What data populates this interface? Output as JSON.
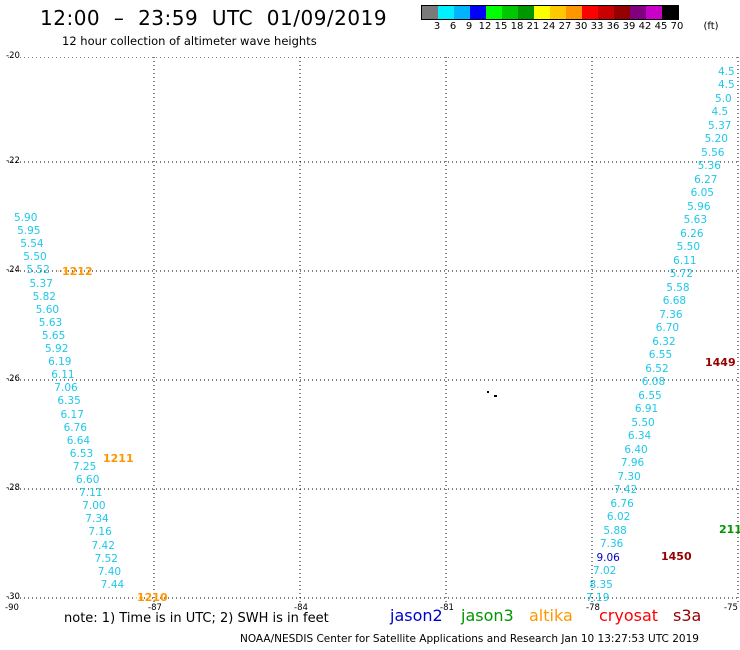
{
  "header": {
    "title": "12:00  –  23:59  UTC  01/09/2019",
    "subtitle": "12 hour collection of altimeter wave heights"
  },
  "scale": {
    "labels": [
      "3",
      "6",
      "9",
      "12",
      "15",
      "18",
      "21",
      "24",
      "27",
      "30",
      "33",
      "36",
      "39",
      "42",
      "45",
      "70",
      "(ft)"
    ],
    "colors": [
      "#7a7a7a",
      "#00f0ff",
      "#00b4ff",
      "#0000ff",
      "#00ff00",
      "#00c800",
      "#009600",
      "#ffff00",
      "#ffc800",
      "#ff9600",
      "#ff0000",
      "#c80000",
      "#960000",
      "#800080",
      "#c800c8",
      "#000000"
    ]
  },
  "axes": {
    "y_ticks": [
      "-20",
      "-22",
      "-24",
      "-26",
      "-28",
      "-30"
    ],
    "x_ticks": [
      "-90",
      "-87",
      "-84",
      "-81",
      "-78",
      "-75"
    ]
  },
  "note": "note:  1) Time is in UTC;  2) SWH is in feet",
  "legend": [
    {
      "label": "jason2",
      "color": "#0000cc"
    },
    {
      "label": "jason3",
      "color": "#009600"
    },
    {
      "label": "altika",
      "color": "#ff9600"
    },
    {
      "label": "cryosat",
      "color": "#ff0000"
    },
    {
      "label": "s3a",
      "color": "#960000"
    }
  ],
  "footer": "NOAA/NESDIS Center for Satellite Applications and Research    Jan 10 13:27:53 UTC 2019",
  "track_left": {
    "values": [
      "5.90",
      "5.95",
      "5.54",
      "5.50",
      "5.52",
      "5.37",
      "5.82",
      "5.60",
      "5.63",
      "5.65",
      "5.92",
      "6.19",
      "6.11",
      "7.06",
      "6.35",
      "6.17",
      "6.76",
      "6.64",
      "6.53",
      "7.25",
      "6.60",
      "7.11",
      "7.00",
      "7.34",
      "7.16",
      "7.42",
      "7.52",
      "7.40",
      "7.44"
    ]
  },
  "track_right": {
    "values": [
      "4.5",
      "4.5",
      "5.0",
      "4.5",
      "5.37",
      "5.20",
      "5.56",
      "5.36",
      "6.27",
      "6.05",
      "5.96",
      "5.63",
      "6.26",
      "5.50",
      "6.11",
      "5.72",
      "5.58",
      "6.68",
      "7.36",
      "6.70",
      "6.32",
      "6.55",
      "6.52",
      "6.08",
      "6.55",
      "6.91",
      "5.50",
      "6.34",
      "6.40",
      "7.96",
      "7.30",
      "7.42",
      "6.76",
      "6.02",
      "5.88",
      "7.36",
      "9.06",
      "7.02",
      "8.35",
      "7.19"
    ]
  },
  "times": [
    {
      "label": "1212",
      "color": "#ff9600"
    },
    {
      "label": "1211",
      "color": "#ff9600"
    },
    {
      "label": "1210",
      "color": "#ff9600"
    },
    {
      "label": "1449",
      "color": "#960000"
    },
    {
      "label": "1450",
      "color": "#960000"
    },
    {
      "label": "211",
      "color": "#009600"
    }
  ]
}
